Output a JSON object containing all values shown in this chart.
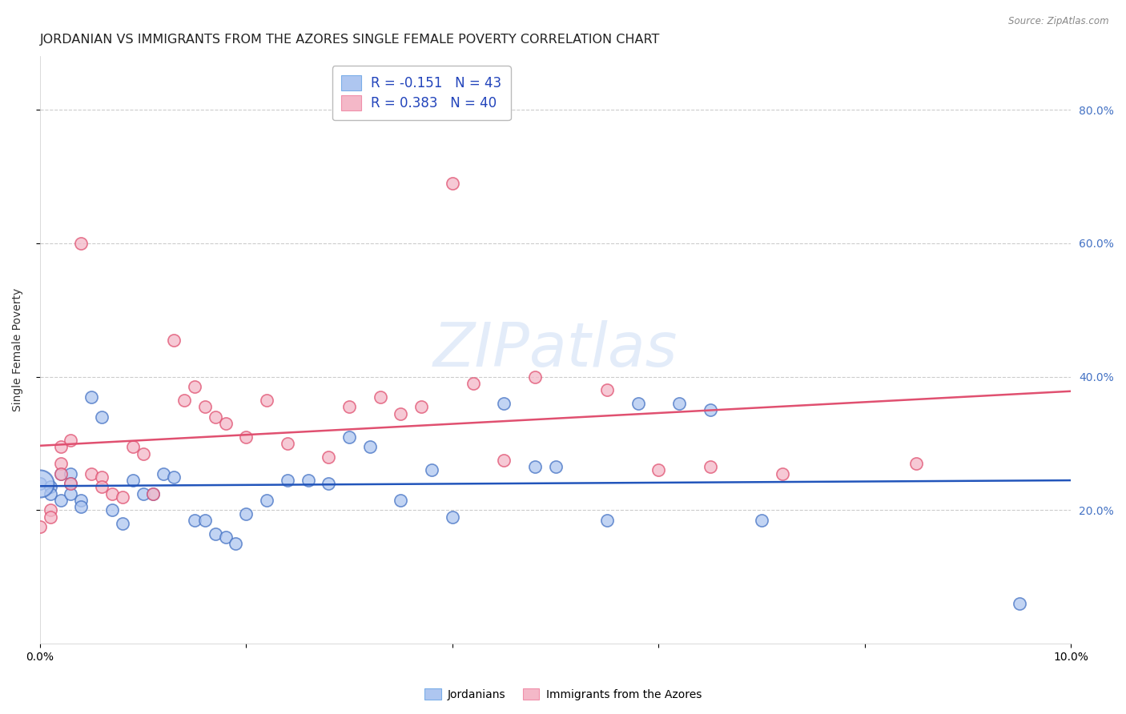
{
  "title": "JORDANIAN VS IMMIGRANTS FROM THE AZORES SINGLE FEMALE POVERTY CORRELATION CHART",
  "source": "Source: ZipAtlas.com",
  "ylabel": "Single Female Poverty",
  "right_yticks": [
    "20.0%",
    "40.0%",
    "60.0%",
    "80.0%"
  ],
  "right_ytick_vals": [
    0.2,
    0.4,
    0.6,
    0.8
  ],
  "xlim": [
    0.0,
    0.1
  ],
  "ylim": [
    0.0,
    0.88
  ],
  "legend_entries": [
    {
      "label": "R = -0.151   N = 43",
      "color": "#aec6f0"
    },
    {
      "label": "R = 0.383   N = 40",
      "color": "#f4b8c8"
    }
  ],
  "watermark": "ZIPatlas",
  "jordanians": {
    "face_color": "#aec6f0",
    "edge_color": "#4472c4",
    "trend_color": "#2255bb",
    "x": [
      0.0,
      0.001,
      0.001,
      0.002,
      0.002,
      0.003,
      0.003,
      0.003,
      0.004,
      0.004,
      0.005,
      0.006,
      0.007,
      0.008,
      0.009,
      0.01,
      0.011,
      0.012,
      0.013,
      0.015,
      0.016,
      0.017,
      0.018,
      0.019,
      0.02,
      0.022,
      0.024,
      0.026,
      0.028,
      0.03,
      0.032,
      0.035,
      0.038,
      0.04,
      0.045,
      0.048,
      0.05,
      0.055,
      0.058,
      0.062,
      0.065,
      0.07,
      0.095
    ],
    "y": [
      0.24,
      0.235,
      0.225,
      0.255,
      0.215,
      0.255,
      0.24,
      0.225,
      0.215,
      0.205,
      0.37,
      0.34,
      0.2,
      0.18,
      0.245,
      0.225,
      0.225,
      0.255,
      0.25,
      0.185,
      0.185,
      0.165,
      0.16,
      0.15,
      0.195,
      0.215,
      0.245,
      0.245,
      0.24,
      0.31,
      0.295,
      0.215,
      0.26,
      0.19,
      0.36,
      0.265,
      0.265,
      0.185,
      0.36,
      0.36,
      0.35,
      0.185,
      0.06
    ],
    "big_x": [
      0.0
    ],
    "big_y": [
      0.24
    ]
  },
  "azores": {
    "face_color": "#f4b8c8",
    "edge_color": "#e05070",
    "trend_color": "#e05070",
    "x": [
      0.0,
      0.001,
      0.001,
      0.002,
      0.002,
      0.002,
      0.003,
      0.003,
      0.004,
      0.005,
      0.006,
      0.006,
      0.007,
      0.008,
      0.009,
      0.01,
      0.011,
      0.013,
      0.014,
      0.015,
      0.016,
      0.017,
      0.018,
      0.02,
      0.022,
      0.024,
      0.028,
      0.03,
      0.033,
      0.035,
      0.037,
      0.04,
      0.042,
      0.045,
      0.048,
      0.055,
      0.06,
      0.065,
      0.072,
      0.085
    ],
    "y": [
      0.175,
      0.2,
      0.19,
      0.295,
      0.27,
      0.255,
      0.305,
      0.24,
      0.6,
      0.255,
      0.25,
      0.235,
      0.225,
      0.22,
      0.295,
      0.285,
      0.225,
      0.455,
      0.365,
      0.385,
      0.355,
      0.34,
      0.33,
      0.31,
      0.365,
      0.3,
      0.28,
      0.355,
      0.37,
      0.345,
      0.355,
      0.69,
      0.39,
      0.275,
      0.4,
      0.38,
      0.26,
      0.265,
      0.255,
      0.27
    ]
  },
  "bottom_labels": [
    "Jordanians",
    "Immigrants from the Azores"
  ],
  "background_color": "#ffffff",
  "grid_color": "#cccccc",
  "title_fontsize": 11.5,
  "axis_label_fontsize": 10,
  "tick_fontsize": 10
}
